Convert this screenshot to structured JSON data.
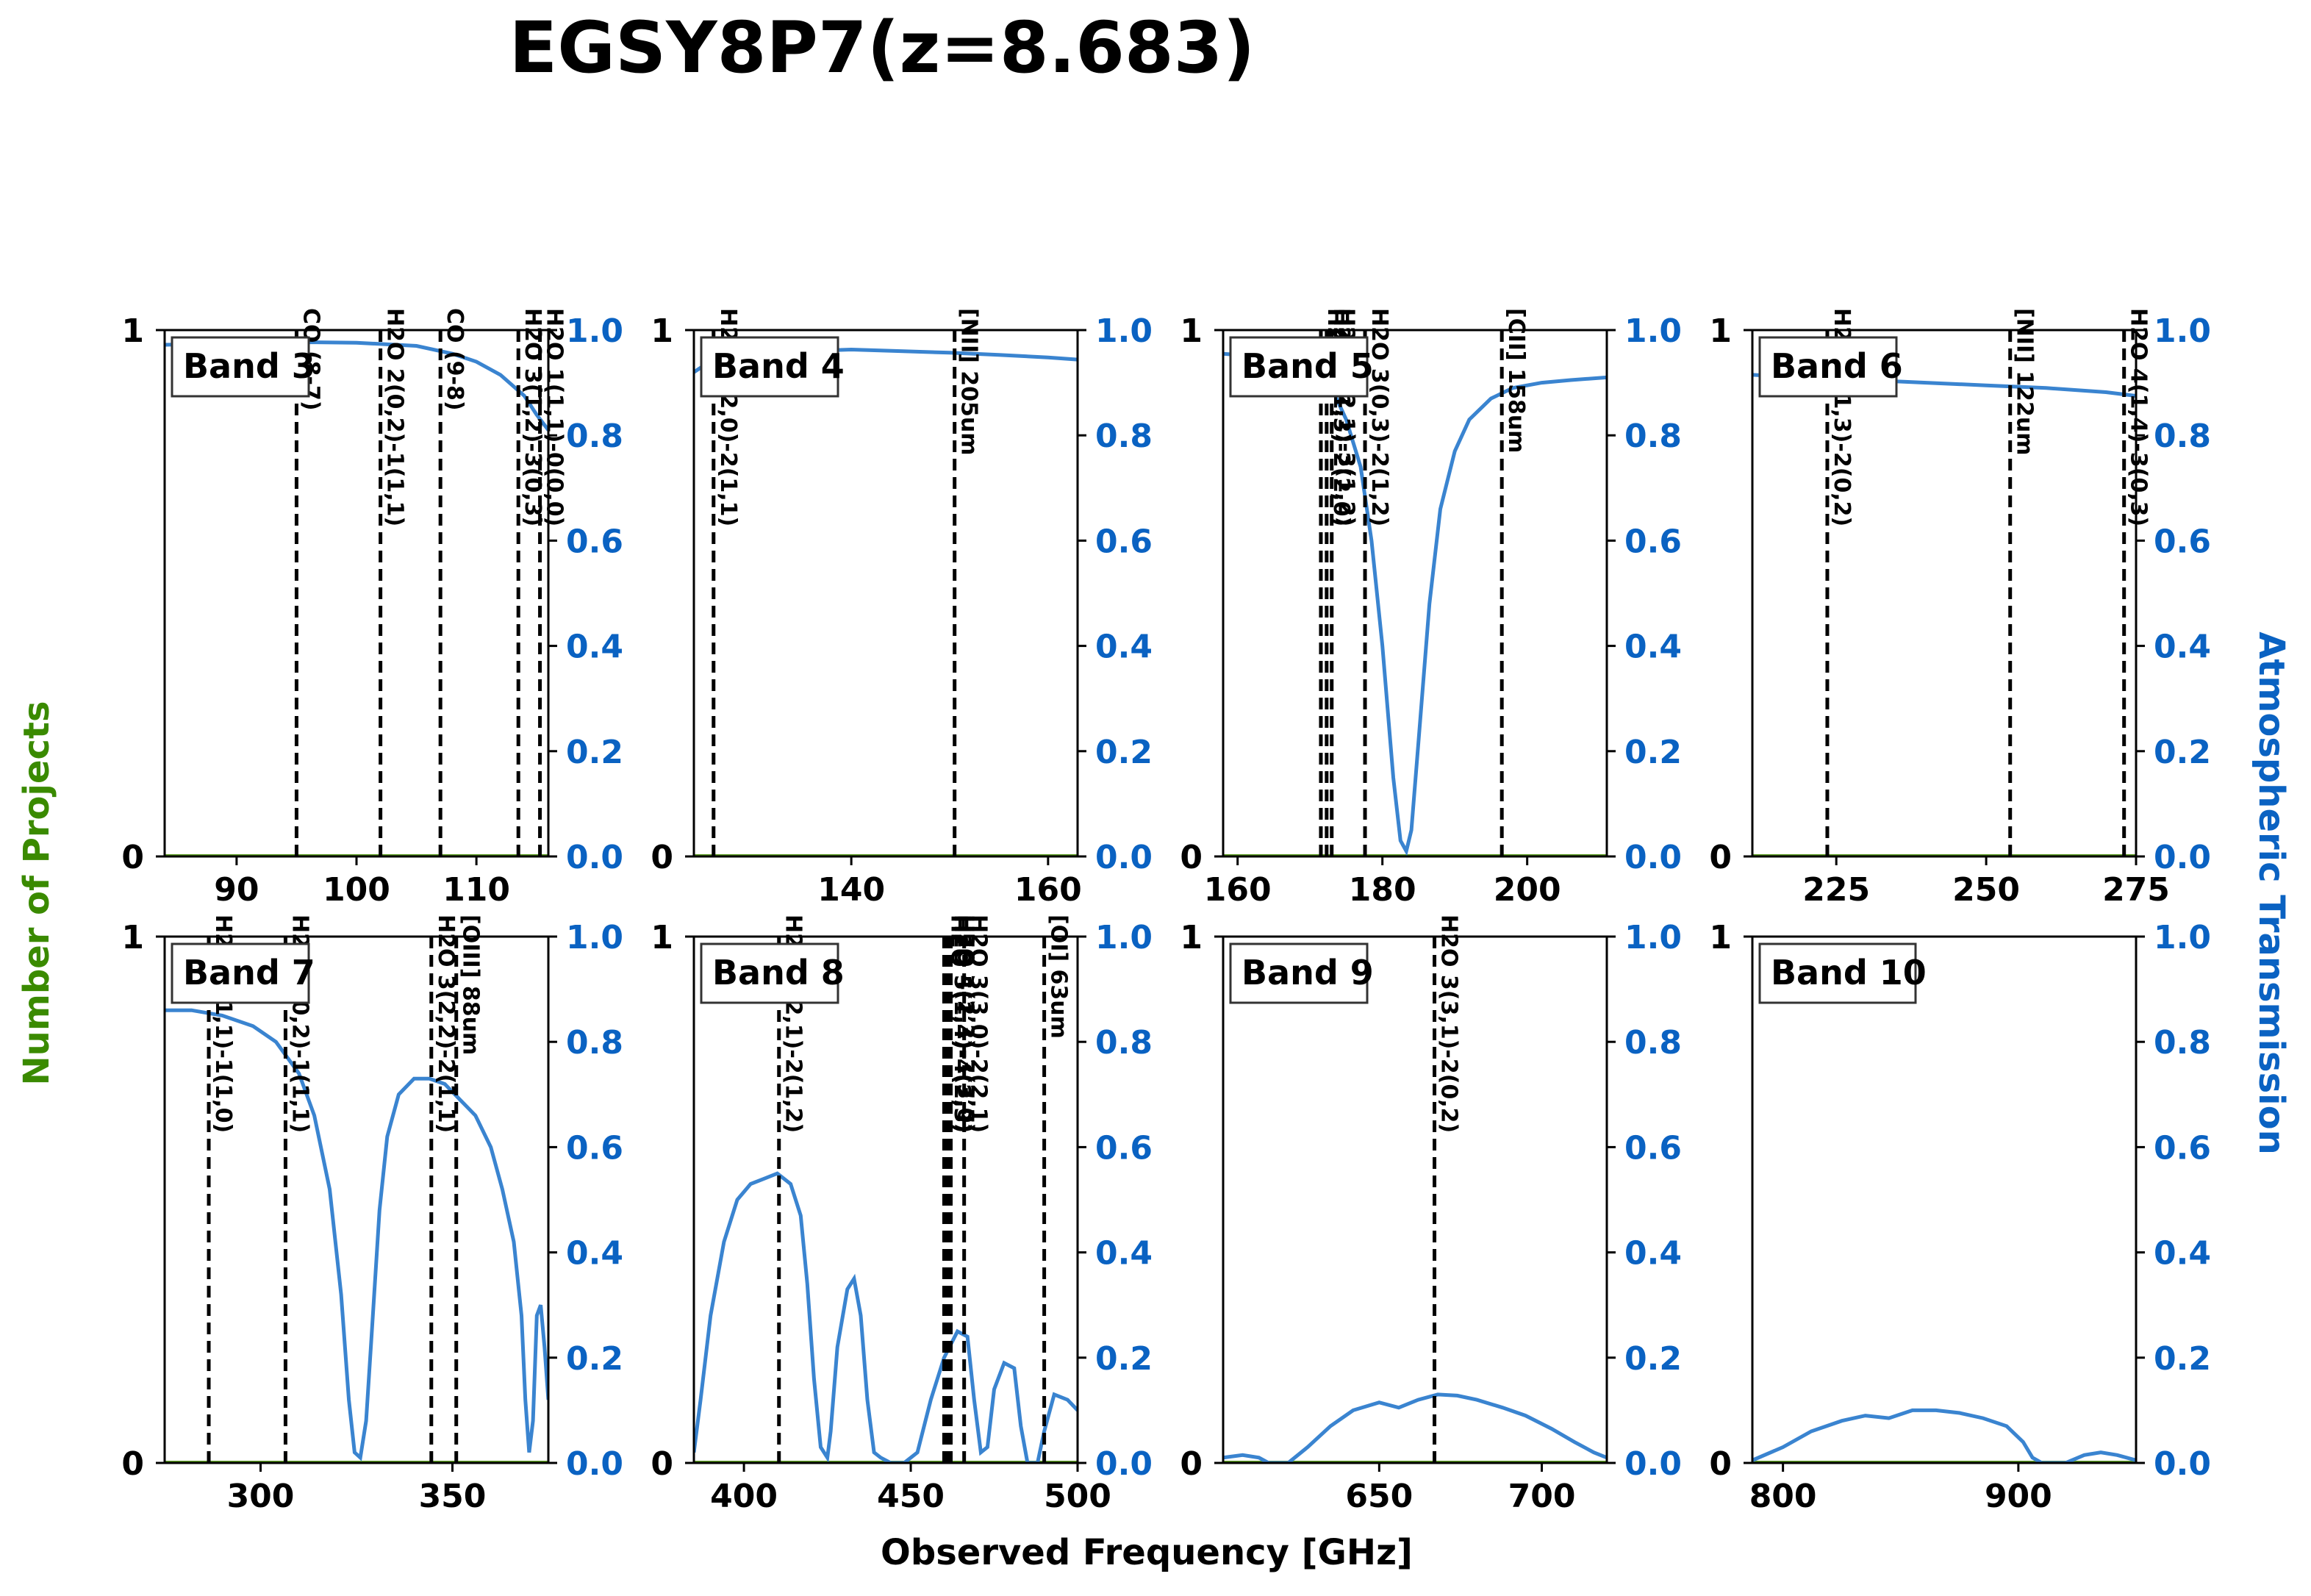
{
  "title": "EGSY8P7(z=8.683)",
  "xlabel": "Observed Frequency [GHz]",
  "ylabel_left": "Number of Projects",
  "ylabel_right": "Atmospheric Transmission",
  "colors": {
    "left_axis": "#3a8a00",
    "right_axis": "#0a62c2",
    "curve": "#3a84d0",
    "marker": "#000000",
    "zero_line": "#5a9a20"
  },
  "left_ticks": [
    "0",
    "1"
  ],
  "right_ticks": [
    "0.0",
    "0.2",
    "0.4",
    "0.6",
    "0.8",
    "1.0"
  ],
  "chart_data": [
    {
      "type": "line",
      "band": "Band 3",
      "xlim": [
        84,
        116
      ],
      "ylim_left": [
        0,
        1
      ],
      "ylim_right": [
        0,
        1
      ],
      "xticks": [
        90,
        100,
        110
      ],
      "lines": [
        {
          "x": 95.0,
          "label": "CO (8-7)"
        },
        {
          "x": 102.0,
          "label": "H2O 2(0,2)-1(1,1)"
        },
        {
          "x": 107.0,
          "label": "CO (9-8)"
        },
        {
          "x": 113.5,
          "label": "H2O 3(1,2)-3(0,3)"
        },
        {
          "x": 115.3,
          "label": "H2O 1(1,1)-0(0,0)"
        }
      ],
      "transmission": [
        [
          84,
          0.972
        ],
        [
          90,
          0.975
        ],
        [
          96,
          0.977
        ],
        [
          100,
          0.976
        ],
        [
          105,
          0.97
        ],
        [
          108,
          0.955
        ],
        [
          110,
          0.94
        ],
        [
          112,
          0.915
        ],
        [
          114,
          0.875
        ],
        [
          115,
          0.84
        ],
        [
          116,
          0.81
        ]
      ]
    },
    {
      "type": "line",
      "band": "Band 4",
      "xlim": [
        124,
        163
      ],
      "ylim_left": [
        0,
        1
      ],
      "ylim_right": [
        0,
        1
      ],
      "xticks": [
        140,
        160
      ],
      "lines": [
        {
          "x": 126.0,
          "label": "H2O 2(2,0)-2(1,1)"
        },
        {
          "x": 150.5,
          "label": "[NII] 205um"
        }
      ],
      "transmission": [
        [
          124,
          0.92
        ],
        [
          126,
          0.945
        ],
        [
          130,
          0.955
        ],
        [
          135,
          0.96
        ],
        [
          140,
          0.963
        ],
        [
          145,
          0.96
        ],
        [
          150,
          0.957
        ],
        [
          155,
          0.953
        ],
        [
          160,
          0.948
        ],
        [
          163,
          0.944
        ]
      ]
    },
    {
      "type": "line",
      "band": "Band 5",
      "xlim": [
        158,
        211
      ],
      "ylim_left": [
        0,
        1
      ],
      "ylim_right": [
        0,
        1
      ],
      "xticks": [
        160,
        180,
        200
      ],
      "lines": [
        {
          "x": 171.5,
          "label": "H2O"
        },
        {
          "x": 172.3,
          "label": "H2O 3(1,3)-2(2,0)"
        },
        {
          "x": 173.0,
          "label": "H2O 3(2,1)-3(1,2)"
        },
        {
          "x": 177.6,
          "label": "H2O 3(0,3)-2(1,2)"
        },
        {
          "x": 196.5,
          "label": "[CII] 158um"
        }
      ],
      "transmission": [
        [
          158,
          0.955
        ],
        [
          163,
          0.95
        ],
        [
          166,
          0.945
        ],
        [
          170,
          0.93
        ],
        [
          173,
          0.89
        ],
        [
          175,
          0.83
        ],
        [
          177,
          0.74
        ],
        [
          178.5,
          0.6
        ],
        [
          180,
          0.4
        ],
        [
          181.5,
          0.15
        ],
        [
          182.5,
          0.03
        ],
        [
          183.3,
          0.01
        ],
        [
          184,
          0.05
        ],
        [
          185,
          0.22
        ],
        [
          186.5,
          0.48
        ],
        [
          188,
          0.66
        ],
        [
          190,
          0.77
        ],
        [
          192,
          0.83
        ],
        [
          195,
          0.87
        ],
        [
          198,
          0.89
        ],
        [
          202,
          0.9
        ],
        [
          206,
          0.905
        ],
        [
          211,
          0.91
        ]
      ]
    },
    {
      "type": "line",
      "band": "Band 6",
      "xlim": [
        211,
        275
      ],
      "ylim_left": [
        0,
        1
      ],
      "ylim_right": [
        0,
        1
      ],
      "xticks": [
        225,
        250,
        275
      ],
      "lines": [
        {
          "x": 223.5,
          "label": "H2O 3(1,3)-2(0,2)"
        },
        {
          "x": 254.0,
          "label": "[NII] 122um"
        },
        {
          "x": 273.0,
          "label": "H2O 4(1,4)-3(0,3)"
        }
      ],
      "transmission": [
        [
          211,
          0.915
        ],
        [
          220,
          0.91
        ],
        [
          230,
          0.905
        ],
        [
          240,
          0.9
        ],
        [
          250,
          0.895
        ],
        [
          260,
          0.89
        ],
        [
          270,
          0.882
        ],
        [
          275,
          0.875
        ]
      ]
    },
    {
      "type": "line",
      "band": "Band 7",
      "xlim": [
        275,
        375
      ],
      "ylim_left": [
        0,
        1
      ],
      "ylim_right": [
        0,
        1
      ],
      "xticks": [
        300,
        350
      ],
      "lines": [
        {
          "x": 286.5,
          "label": "H2O 2(1,1)-1(1,0)"
        },
        {
          "x": 306.5,
          "label": "H2O 2(0,2)-1(1,1)"
        },
        {
          "x": 344.5,
          "label": "H2O 3(2,2)-2(1,1)"
        },
        {
          "x": 351.0,
          "label": "[OIII] 88um"
        }
      ],
      "transmission": [
        [
          275,
          0.86
        ],
        [
          282,
          0.86
        ],
        [
          290,
          0.85
        ],
        [
          298,
          0.83
        ],
        [
          304,
          0.8
        ],
        [
          310,
          0.74
        ],
        [
          314,
          0.66
        ],
        [
          318,
          0.52
        ],
        [
          321,
          0.32
        ],
        [
          323,
          0.12
        ],
        [
          324.5,
          0.02
        ],
        [
          326,
          0.01
        ],
        [
          327.5,
          0.08
        ],
        [
          329,
          0.25
        ],
        [
          331,
          0.48
        ],
        [
          333,
          0.62
        ],
        [
          336,
          0.7
        ],
        [
          340,
          0.73
        ],
        [
          344,
          0.73
        ],
        [
          348,
          0.72
        ],
        [
          352,
          0.69
        ],
        [
          356,
          0.66
        ],
        [
          360,
          0.6
        ],
        [
          363,
          0.52
        ],
        [
          366,
          0.42
        ],
        [
          368,
          0.28
        ],
        [
          369,
          0.12
        ],
        [
          370,
          0.02
        ],
        [
          371,
          0.08
        ],
        [
          372,
          0.28
        ],
        [
          373,
          0.3
        ],
        [
          374,
          0.22
        ],
        [
          375,
          0.12
        ]
      ]
    },
    {
      "type": "line",
      "band": "Band 8",
      "xlim": [
        385,
        500
      ],
      "ylim_left": [
        0,
        1
      ],
      "ylim_right": [
        0,
        1
      ],
      "xticks": [
        400,
        450,
        500
      ],
      "lines": [
        {
          "x": 410.5,
          "label": "H2O 3(2,1)-2(1,2)"
        },
        {
          "x": 460.0,
          "label": "H2O"
        },
        {
          "x": 461.0,
          "label": "H2O 5(1,4)-4(2,3)"
        },
        {
          "x": 462.0,
          "label": "H2O 4(2,3)-3(3,0)"
        },
        {
          "x": 466.0,
          "label": "H2O 3(3,0)-2(2,1)"
        },
        {
          "x": 490.0,
          "label": "[OI] 63um"
        }
      ],
      "transmission": [
        [
          385,
          0.02
        ],
        [
          387,
          0.12
        ],
        [
          390,
          0.28
        ],
        [
          394,
          0.42
        ],
        [
          398,
          0.5
        ],
        [
          402,
          0.53
        ],
        [
          406,
          0.54
        ],
        [
          410,
          0.55
        ],
        [
          414,
          0.53
        ],
        [
          417,
          0.47
        ],
        [
          419,
          0.34
        ],
        [
          421,
          0.16
        ],
        [
          423,
          0.03
        ],
        [
          425,
          0.01
        ],
        [
          426,
          0.06
        ],
        [
          428,
          0.22
        ],
        [
          431,
          0.33
        ],
        [
          433,
          0.35
        ],
        [
          435,
          0.28
        ],
        [
          437,
          0.12
        ],
        [
          439,
          0.02
        ],
        [
          441,
          0.01
        ],
        [
          444,
          0.0
        ],
        [
          448,
          0.0
        ],
        [
          452,
          0.02
        ],
        [
          456,
          0.12
        ],
        [
          460,
          0.2
        ],
        [
          464,
          0.25
        ],
        [
          467,
          0.24
        ],
        [
          469,
          0.12
        ],
        [
          471,
          0.02
        ],
        [
          473,
          0.03
        ],
        [
          475,
          0.14
        ],
        [
          478,
          0.19
        ],
        [
          481,
          0.18
        ],
        [
          483,
          0.07
        ],
        [
          485,
          0.0
        ],
        [
          488,
          0.0
        ],
        [
          490,
          0.06
        ],
        [
          493,
          0.13
        ],
        [
          497,
          0.12
        ],
        [
          500,
          0.1
        ]
      ]
    },
    {
      "type": "line",
      "band": "Band 9",
      "xlim": [
        602,
        720
      ],
      "ylim_left": [
        0,
        1
      ],
      "ylim_right": [
        0,
        1
      ],
      "xticks": [
        650,
        700
      ],
      "lines": [
        {
          "x": 667.0,
          "label": "H2O 3(3,1)-2(0,2)"
        }
      ],
      "transmission": [
        [
          602,
          0.01
        ],
        [
          608,
          0.015
        ],
        [
          613,
          0.01
        ],
        [
          616,
          0.0
        ],
        [
          622,
          0.0
        ],
        [
          628,
          0.03
        ],
        [
          635,
          0.07
        ],
        [
          642,
          0.1
        ],
        [
          650,
          0.115
        ],
        [
          656,
          0.105
        ],
        [
          662,
          0.12
        ],
        [
          668,
          0.13
        ],
        [
          674,
          0.128
        ],
        [
          680,
          0.12
        ],
        [
          688,
          0.105
        ],
        [
          695,
          0.09
        ],
        [
          703,
          0.065
        ],
        [
          710,
          0.04
        ],
        [
          716,
          0.02
        ],
        [
          720,
          0.01
        ]
      ]
    },
    {
      "type": "line",
      "band": "Band 10",
      "xlim": [
        787,
        950
      ],
      "ylim_left": [
        0,
        1
      ],
      "ylim_right": [
        0,
        1
      ],
      "xticks": [
        800,
        900
      ],
      "lines": [],
      "transmission": [
        [
          787,
          0.005
        ],
        [
          800,
          0.03
        ],
        [
          812,
          0.06
        ],
        [
          825,
          0.08
        ],
        [
          835,
          0.09
        ],
        [
          845,
          0.085
        ],
        [
          855,
          0.1
        ],
        [
          865,
          0.1
        ],
        [
          875,
          0.095
        ],
        [
          885,
          0.085
        ],
        [
          895,
          0.07
        ],
        [
          902,
          0.04
        ],
        [
          906,
          0.01
        ],
        [
          910,
          0.0
        ],
        [
          920,
          0.0
        ],
        [
          928,
          0.015
        ],
        [
          935,
          0.02
        ],
        [
          942,
          0.015
        ],
        [
          950,
          0.005
        ]
      ]
    }
  ]
}
